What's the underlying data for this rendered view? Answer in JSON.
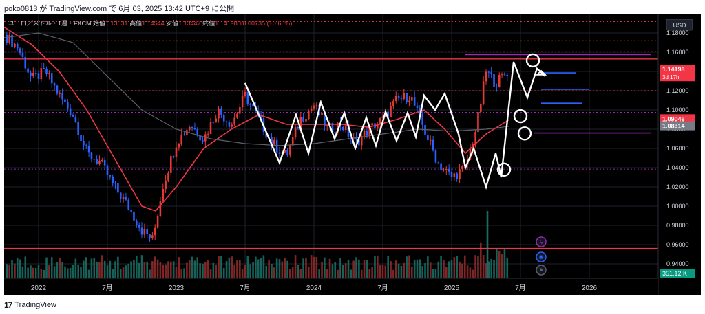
{
  "header": {
    "publish_line": "poko0813 が TradingView.com で 6月 03, 2025 13:42 UTC+9 に公開"
  },
  "footer": {
    "logo_text": "TradingView"
  },
  "colors": {
    "background": "#000000",
    "up": "#e53935",
    "down": "#2962ff",
    "ma_fast": "#f23645",
    "ma_slow": "#5d606b",
    "zigzag": "#ffffff",
    "level_red": "#f23645",
    "level_purple": "#9c27b0",
    "level_blue": "#2962ff",
    "grid": "#1e222d"
  },
  "legend": {
    "symbol": "ユーロ／米ドル・1週・FXCM",
    "open_label": "始値",
    "open_value": "1.13531",
    "high_label": "高値",
    "high_value": "1.14544",
    "low_label": "安値",
    "low_value": "1.13447",
    "close_label": "終値",
    "close_value": "1.14198",
    "change": "+0.00735 (+0.65%)"
  },
  "chart_data": {
    "type": "candlestick",
    "symbol": "ユーロ／米ドル",
    "timeframe": "1週",
    "source": "FXCM",
    "currency": "USD",
    "ylim": [
      0.925,
      1.2
    ],
    "y_ticks": [
      "1.18000",
      "1.16000",
      "1.14000",
      "1.12000",
      "1.10000",
      "1.08000",
      "1.06000",
      "1.04000",
      "1.02000",
      "1.00000",
      "0.98000",
      "0.96000",
      "0.94000"
    ],
    "x_ticks": [
      "2022",
      "7月",
      "2023",
      "7月",
      "2024",
      "7月",
      "2025",
      "7月",
      "2026"
    ],
    "x_tick_positions": [
      2022.0,
      2022.5,
      2023.0,
      2023.5,
      2024.0,
      2024.5,
      2025.0,
      2025.5,
      2026.0
    ],
    "xlim": [
      2021.75,
      2026.5
    ],
    "last_bar_date": 2025.42,
    "price_path": [
      [
        2021.75,
        1.178
      ],
      [
        2021.85,
        1.165
      ],
      [
        2021.95,
        1.132
      ],
      [
        2022.05,
        1.14
      ],
      [
        2022.15,
        1.115
      ],
      [
        2022.25,
        1.095
      ],
      [
        2022.35,
        1.055
      ],
      [
        2022.45,
        1.045
      ],
      [
        2022.55,
        1.02
      ],
      [
        2022.65,
        1.0
      ],
      [
        2022.75,
        0.975
      ],
      [
        2022.83,
        0.965
      ],
      [
        2022.9,
        1.02
      ],
      [
        2023.0,
        1.066
      ],
      [
        2023.1,
        1.085
      ],
      [
        2023.2,
        1.07
      ],
      [
        2023.3,
        1.1
      ],
      [
        2023.4,
        1.085
      ],
      [
        2023.5,
        1.115
      ],
      [
        2023.6,
        1.09
      ],
      [
        2023.7,
        1.065
      ],
      [
        2023.8,
        1.052
      ],
      [
        2023.9,
        1.09
      ],
      [
        2024.0,
        1.105
      ],
      [
        2024.1,
        1.08
      ],
      [
        2024.2,
        1.085
      ],
      [
        2024.3,
        1.065
      ],
      [
        2024.4,
        1.08
      ],
      [
        2024.5,
        1.09
      ],
      [
        2024.6,
        1.11
      ],
      [
        2024.7,
        1.115
      ],
      [
        2024.8,
        1.08
      ],
      [
        2024.9,
        1.045
      ],
      [
        2025.0,
        1.03
      ],
      [
        2025.1,
        1.04
      ],
      [
        2025.18,
        1.082
      ],
      [
        2025.25,
        1.14
      ],
      [
        2025.32,
        1.128
      ],
      [
        2025.42,
        1.142
      ]
    ],
    "series": [
      {
        "name": "",
        "kind": "moving-average-fast",
        "points": [
          [
            2021.75,
            1.186
          ],
          [
            2021.95,
            1.168
          ],
          [
            2022.15,
            1.14
          ],
          [
            2022.35,
            1.1
          ],
          [
            2022.55,
            1.05
          ],
          [
            2022.75,
            1.0
          ],
          [
            2022.85,
            0.995
          ],
          [
            2023.0,
            1.02
          ],
          [
            2023.2,
            1.06
          ],
          [
            2023.4,
            1.08
          ],
          [
            2023.6,
            1.095
          ],
          [
            2023.8,
            1.085
          ],
          [
            2024.0,
            1.085
          ],
          [
            2024.2,
            1.085
          ],
          [
            2024.4,
            1.082
          ],
          [
            2024.6,
            1.09
          ],
          [
            2024.8,
            1.1
          ],
          [
            2024.95,
            1.08
          ],
          [
            2025.1,
            1.055
          ],
          [
            2025.25,
            1.075
          ],
          [
            2025.42,
            1.09
          ]
        ]
      },
      {
        "name": "",
        "kind": "moving-average-slow",
        "points": [
          [
            2021.75,
            1.175
          ],
          [
            2022.0,
            1.18
          ],
          [
            2022.25,
            1.17
          ],
          [
            2022.5,
            1.135
          ],
          [
            2022.75,
            1.1
          ],
          [
            2023.0,
            1.08
          ],
          [
            2023.25,
            1.07
          ],
          [
            2023.5,
            1.065
          ],
          [
            2023.75,
            1.063
          ],
          [
            2024.0,
            1.065
          ],
          [
            2024.25,
            1.07
          ],
          [
            2024.5,
            1.075
          ],
          [
            2024.75,
            1.08
          ],
          [
            2025.0,
            1.078
          ],
          [
            2025.25,
            1.08
          ],
          [
            2025.42,
            1.083
          ]
        ]
      },
      {
        "name": "",
        "kind": "zigzag-drawing",
        "points": [
          [
            2023.5,
            1.128
          ],
          [
            2023.75,
            1.045
          ],
          [
            2023.87,
            1.095
          ],
          [
            2023.96,
            1.055
          ],
          [
            2024.05,
            1.108
          ],
          [
            2024.15,
            1.07
          ],
          [
            2024.22,
            1.097
          ],
          [
            2024.3,
            1.06
          ],
          [
            2024.38,
            1.092
          ],
          [
            2024.45,
            1.063
          ],
          [
            2024.52,
            1.098
          ],
          [
            2024.6,
            1.068
          ],
          [
            2024.68,
            1.097
          ],
          [
            2024.74,
            1.072
          ],
          [
            2024.8,
            1.115
          ],
          [
            2024.88,
            1.1
          ],
          [
            2024.95,
            1.117
          ],
          [
            2025.05,
            1.075
          ],
          [
            2025.1,
            1.04
          ],
          [
            2025.16,
            1.06
          ],
          [
            2025.25,
            1.02
          ],
          [
            2025.32,
            1.055
          ],
          [
            2025.36,
            1.03
          ],
          [
            2025.45,
            1.15
          ],
          [
            2025.55,
            1.113
          ],
          [
            2025.62,
            1.143
          ],
          [
            2025.68,
            1.135
          ]
        ]
      }
    ],
    "horizontal_levels": [
      {
        "y": 1.1919,
        "color": "red",
        "style": "dotted"
      },
      {
        "y": 1.172,
        "color": "red",
        "style": "dotted"
      },
      {
        "y": 1.1605,
        "color": "red",
        "style": "dotted"
      },
      {
        "y": 1.153,
        "color": "red",
        "style": "solid"
      },
      {
        "y": 1.12,
        "color": "red",
        "style": "dotted"
      },
      {
        "y": 1.0975,
        "color": "purple",
        "style": "dotted"
      },
      {
        "y": 1.0385,
        "color": "purple",
        "style": "dotted"
      },
      {
        "y": 0.956,
        "color": "red",
        "style": "solid"
      }
    ],
    "segments": [
      {
        "x1": 2025.1,
        "x2": 2026.45,
        "y": 1.1575,
        "color": "purple"
      },
      {
        "x1": 2025.65,
        "x2": 2025.9,
        "y": 1.1385,
        "color": "blue"
      },
      {
        "x1": 2025.65,
        "x2": 2026.0,
        "y": 1.1215,
        "color": "blue"
      },
      {
        "x1": 2025.65,
        "x2": 2025.95,
        "y": 1.107,
        "color": "blue"
      },
      {
        "x1": 2025.6,
        "x2": 2026.45,
        "y": 1.076,
        "color": "purple"
      }
    ],
    "circles": [
      {
        "x": 2025.38,
        "y": 1.038
      },
      {
        "x": 2025.5,
        "y": 1.0935
      },
      {
        "x": 2025.53,
        "y": 1.0755
      },
      {
        "x": 2025.59,
        "y": 1.1515
      }
    ],
    "price_labels": [
      {
        "text": "1.14198",
        "sub": "3d 17h",
        "y": 1.14198,
        "bg": "#f23645",
        "fg": "#ffffff"
      },
      {
        "text": "1.09046",
        "y": 1.09046,
        "bg": "#f23645",
        "fg": "#ffffff"
      },
      {
        "text": "1.08314",
        "y": 1.08314,
        "bg": "#787b86",
        "fg": "#ffffff"
      }
    ],
    "volume": {
      "last_label": "351.12 K",
      "label_bg": "#089981"
    }
  }
}
